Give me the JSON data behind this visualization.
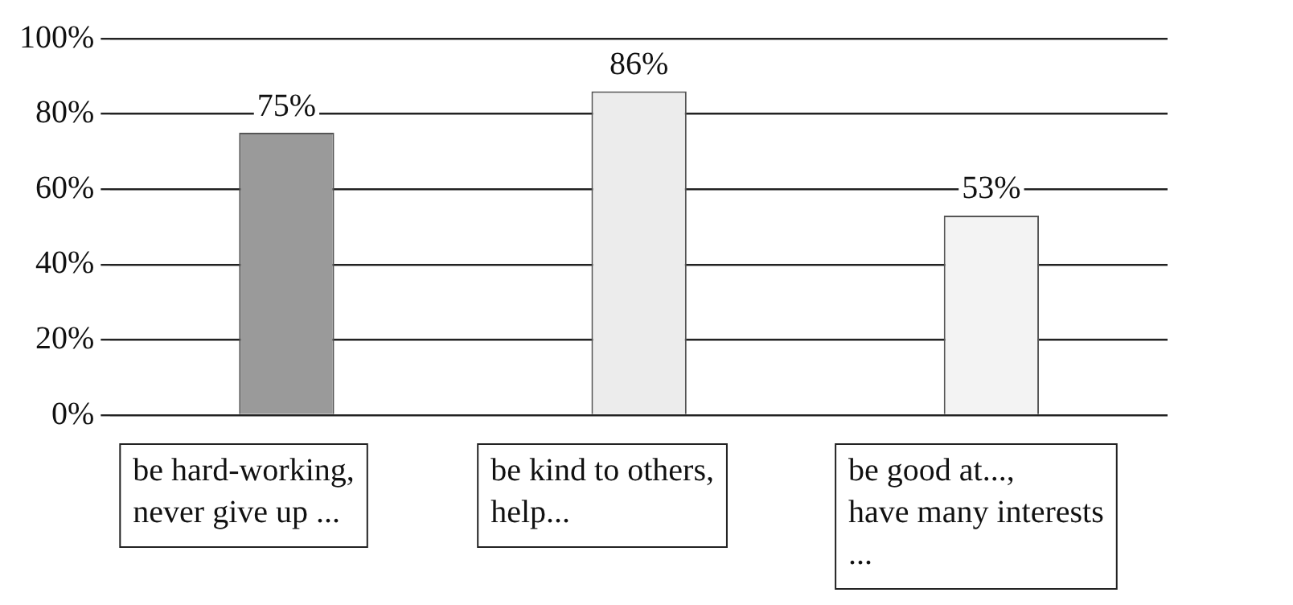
{
  "chart_data": {
    "type": "bar",
    "categories": [
      "be hard-working,\nnever give up ...",
      "be kind to others,\nhelp...",
      "be good at...,\nhave many interests\n..."
    ],
    "values": [
      75,
      86,
      53
    ],
    "colors": [
      "#9a9a9a",
      "#ececec",
      "#f3f3f3"
    ],
    "ylim": [
      0,
      100
    ],
    "yticks": [
      {
        "value": 0,
        "label": "0%"
      },
      {
        "value": 20,
        "label": "20%"
      },
      {
        "value": 40,
        "label": "40%"
      },
      {
        "value": 60,
        "label": "60%"
      },
      {
        "value": 80,
        "label": "80%"
      },
      {
        "value": 100,
        "label": "100%"
      }
    ],
    "value_labels": [
      "75%",
      "86%",
      "53%"
    ],
    "grid": "y",
    "legend": false
  }
}
